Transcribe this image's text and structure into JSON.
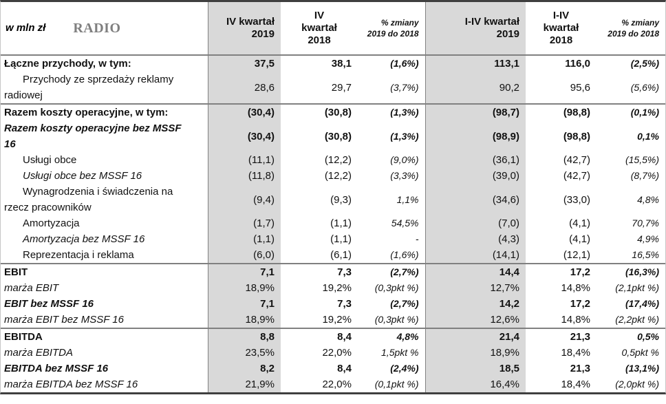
{
  "title": {
    "unit_label": "w mln zł",
    "segment_title": "RADIO"
  },
  "colors": {
    "shaded_column": "#d9d9d9",
    "segment_title_gray": "#7f7f7f",
    "outer_border": "#3f3f3f",
    "section_border": "#808080",
    "text": "#111111"
  },
  "table": {
    "columns": [
      {
        "id": "q4-2019",
        "label": "IV kwartał\n2019",
        "shaded": true,
        "align": "right",
        "header_style": "bold"
      },
      {
        "id": "q4-2018",
        "label": "IV\nkwartał\n2018",
        "shaded": false,
        "align": "center",
        "header_style": "bold"
      },
      {
        "id": "chg-q4",
        "label": "% zmiany\n2019 do 2018",
        "shaded": false,
        "align": "right",
        "header_style": "pct"
      },
      {
        "id": "ytd-2019",
        "label": "I-IV kwartał\n2019",
        "shaded": true,
        "align": "right",
        "header_style": "bold"
      },
      {
        "id": "ytd-2018",
        "label": "I-IV\nkwartał\n2018",
        "shaded": false,
        "align": "center",
        "header_style": "bold"
      },
      {
        "id": "chg-ytd",
        "label": "% zmiany\n2019 do 2018",
        "shaded": false,
        "align": "right",
        "header_style": "pct"
      }
    ],
    "rows": [
      {
        "label": "Łączne przychody, w tym:",
        "label_style": "bold",
        "indent": false,
        "bold_values": true,
        "section_start": false,
        "values": [
          "37,5",
          "38,1",
          "(1,6%)",
          "113,1",
          "116,0",
          "(2,5%)"
        ]
      },
      {
        "label": "Przychody ze sprzedaży reklamy\nradiowej",
        "label_style": "normal",
        "indent": true,
        "bold_values": false,
        "section_start": false,
        "values": [
          "28,6",
          "29,7",
          "(3,7%)",
          "90,2",
          "95,6",
          "(5,6%)"
        ]
      },
      {
        "label": "Razem koszty operacyjne, w tym:",
        "label_style": "bold",
        "indent": false,
        "bold_values": true,
        "section_start": true,
        "values": [
          "(30,4)",
          "(30,8)",
          "(1,3%)",
          "(98,7)",
          "(98,8)",
          "(0,1%)"
        ]
      },
      {
        "label": "Razem koszty operacyjne bez MSSF\n16",
        "label_style": "bold-italic",
        "indent": false,
        "bold_values": true,
        "section_start": false,
        "values": [
          "(30,4)",
          "(30,8)",
          "(1,3%)",
          "(98,9)",
          "(98,8)",
          "0,1%"
        ]
      },
      {
        "label": "Usługi obce",
        "label_style": "normal",
        "indent": true,
        "bold_values": false,
        "section_start": false,
        "values": [
          "(11,1)",
          "(12,2)",
          "(9,0%)",
          "(36,1)",
          "(42,7)",
          "(15,5%)"
        ]
      },
      {
        "label": "Usługi obce bez MSSF 16",
        "label_style": "italic",
        "indent": true,
        "bold_values": false,
        "section_start": false,
        "values": [
          "(11,8)",
          "(12,2)",
          "(3,3%)",
          "(39,0)",
          "(42,7)",
          "(8,7%)"
        ]
      },
      {
        "label": "Wynagrodzenia i świadczenia na\nrzecz pracowników",
        "label_style": "normal",
        "indent": true,
        "bold_values": false,
        "section_start": false,
        "values": [
          "(9,4)",
          "(9,3)",
          "1,1%",
          "(34,6)",
          "(33,0)",
          "4,8%"
        ]
      },
      {
        "label": "Amortyzacja",
        "label_style": "normal",
        "indent": true,
        "bold_values": false,
        "section_start": false,
        "values": [
          "(1,7)",
          "(1,1)",
          "54,5%",
          "(7,0)",
          "(4,1)",
          "70,7%"
        ]
      },
      {
        "label": "Amortyzacja bez MSSF 16",
        "label_style": "italic",
        "indent": true,
        "bold_values": false,
        "section_start": false,
        "values": [
          "(1,1)",
          "(1,1)",
          "-",
          "(4,3)",
          "(4,1)",
          "4,9%"
        ]
      },
      {
        "label": "Reprezentacja i reklama",
        "label_style": "normal",
        "indent": true,
        "bold_values": false,
        "section_start": false,
        "values": [
          "(6,0)",
          "(6,1)",
          "(1,6%)",
          "(14,1)",
          "(12,1)",
          "16,5%"
        ]
      },
      {
        "label": "EBIT",
        "label_style": "bold",
        "indent": false,
        "bold_values": true,
        "section_start": true,
        "values": [
          "7,1",
          "7,3",
          "(2,7%)",
          "14,4",
          "17,2",
          "(16,3%)"
        ]
      },
      {
        "label": "marża EBIT",
        "label_style": "italic",
        "indent": false,
        "bold_values": false,
        "section_start": false,
        "values": [
          "18,9%",
          "19,2%",
          "(0,3pkt %)",
          "12,7%",
          "14,8%",
          "(2,1pkt %)"
        ]
      },
      {
        "label": "EBIT bez MSSF 16",
        "label_style": "bold-italic",
        "indent": false,
        "bold_values": true,
        "section_start": false,
        "values": [
          "7,1",
          "7,3",
          "(2,7%)",
          "14,2",
          "17,2",
          "(17,4%)"
        ]
      },
      {
        "label": "marża EBIT bez MSSF 16",
        "label_style": "italic",
        "indent": false,
        "bold_values": false,
        "section_start": false,
        "values": [
          "18,9%",
          "19,2%",
          "(0,3pkt %)",
          "12,6%",
          "14,8%",
          "(2,2pkt %)"
        ]
      },
      {
        "label": "EBITDA",
        "label_style": "bold",
        "indent": false,
        "bold_values": true,
        "section_start": true,
        "values": [
          "8,8",
          "8,4",
          "4,8%",
          "21,4",
          "21,3",
          "0,5%"
        ]
      },
      {
        "label": "marża EBITDA",
        "label_style": "italic",
        "indent": false,
        "bold_values": false,
        "section_start": false,
        "values": [
          "23,5%",
          "22,0%",
          "1,5pkt %",
          "18,9%",
          "18,4%",
          "0,5pkt %"
        ]
      },
      {
        "label": "EBITDA bez MSSF 16",
        "label_style": "bold-italic",
        "indent": false,
        "bold_values": true,
        "section_start": false,
        "values": [
          "8,2",
          "8,4",
          "(2,4%)",
          "18,5",
          "21,3",
          "(13,1%)"
        ]
      },
      {
        "label": "marża EBITDA bez MSSF 16",
        "label_style": "italic",
        "indent": false,
        "bold_values": false,
        "section_start": false,
        "values": [
          "21,9%",
          "22,0%",
          "(0,1pkt %)",
          "16,4%",
          "18,4%",
          "(2,0pkt %)"
        ]
      }
    ]
  }
}
